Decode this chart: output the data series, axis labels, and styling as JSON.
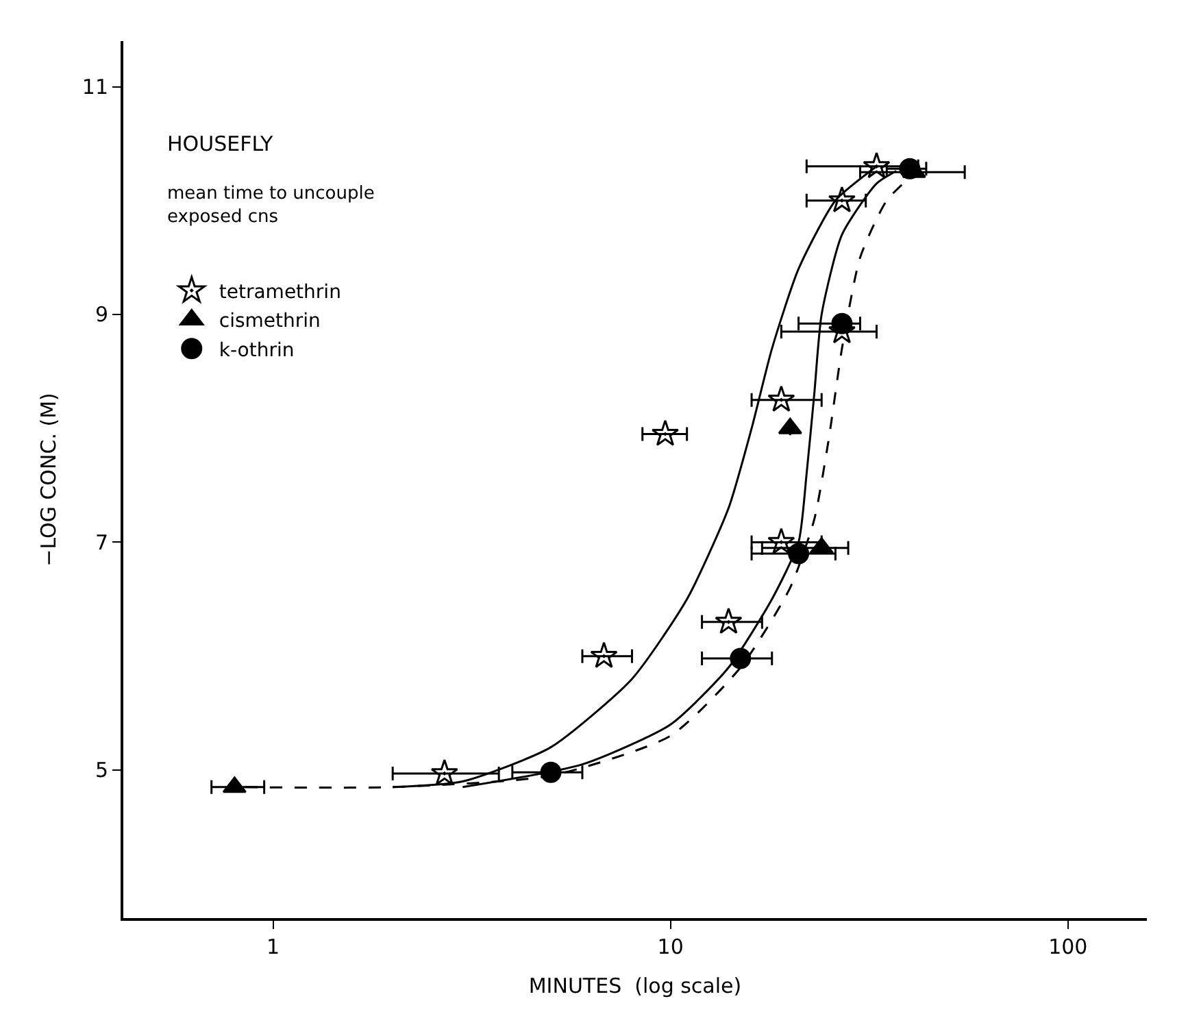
{
  "chart_data": {
    "type": "scatter",
    "xlabel": "MINUTES  (log scale)",
    "ylabel": "−LOG CONC. (M)",
    "annotations": [
      "HOUSEFLY",
      "mean time to uncouple\nexposed cns"
    ],
    "log": "x",
    "legend": "top left",
    "xlim": [
      0.42,
      158
    ],
    "xticks": [
      1,
      10,
      100
    ],
    "ylim": [
      3.7,
      11.4
    ],
    "yticks": [
      5,
      7,
      9,
      11
    ],
    "series": [
      {
        "name": "tetramethrin",
        "marker": "star",
        "color": "#000000",
        "x": [
          2.7,
          6.8,
          9.7,
          14,
          19,
          19,
          27,
          27,
          33
        ],
        "values": [
          4.97,
          6.0,
          7.95,
          6.3,
          7.0,
          8.25,
          8.85,
          10.0,
          10.3
        ],
        "xerrors": [
          [
            2.0,
            3.7
          ],
          [
            6,
            8
          ],
          [
            8.5,
            11
          ],
          [
            12,
            17
          ],
          [
            16,
            24
          ],
          [
            16,
            24
          ],
          [
            19,
            33
          ],
          [
            22,
            31
          ],
          [
            22,
            42
          ]
        ]
      },
      {
        "name": "cismethrin",
        "marker": "triangle",
        "color": "#000000",
        "x": [
          0.8,
          20,
          24,
          41
        ],
        "values": [
          4.85,
          8.0,
          6.95,
          10.25
        ],
        "xerrors": [
          [
            0.7,
            0.95
          ],
          null,
          [
            17,
            28
          ],
          [
            30,
            55
          ]
        ]
      },
      {
        "name": "k-othrin",
        "marker": "circle",
        "color": "#000000",
        "x": [
          5,
          15,
          21,
          27,
          40
        ],
        "values": [
          4.98,
          5.98,
          6.9,
          8.92,
          10.28
        ],
        "xerrors": [
          [
            4,
            6
          ],
          [
            12,
            18
          ],
          [
            16,
            26
          ],
          [
            21,
            30
          ],
          [
            35,
            44
          ]
        ]
      },
      {
        "type": "line",
        "line_style": "solid",
        "color": "#000000",
        "x": [
          2,
          3,
          5,
          8,
          11,
          14,
          16,
          18,
          21,
          26,
          33
        ],
        "values": [
          4.85,
          4.9,
          5.2,
          5.8,
          6.5,
          7.3,
          8.0,
          8.7,
          9.4,
          10.0,
          10.3
        ]
      },
      {
        "type": "line",
        "line_style": "solid",
        "color": "#000000",
        "x": [
          3,
          6,
          10,
          14,
          18,
          21,
          22,
          23,
          24,
          27,
          33,
          37
        ],
        "values": [
          4.85,
          5.05,
          5.4,
          5.9,
          6.5,
          7.0,
          7.6,
          8.3,
          9.0,
          9.7,
          10.15,
          10.26
        ]
      },
      {
        "type": "line",
        "line_style": "dashed",
        "color": "#000000",
        "x": [
          0.85,
          2,
          5,
          10,
          15,
          20,
          23,
          25,
          27,
          30,
          35,
          43
        ],
        "values": [
          4.85,
          4.85,
          4.95,
          5.3,
          5.9,
          6.6,
          7.2,
          7.9,
          8.7,
          9.5,
          10.0,
          10.3
        ]
      }
    ]
  }
}
